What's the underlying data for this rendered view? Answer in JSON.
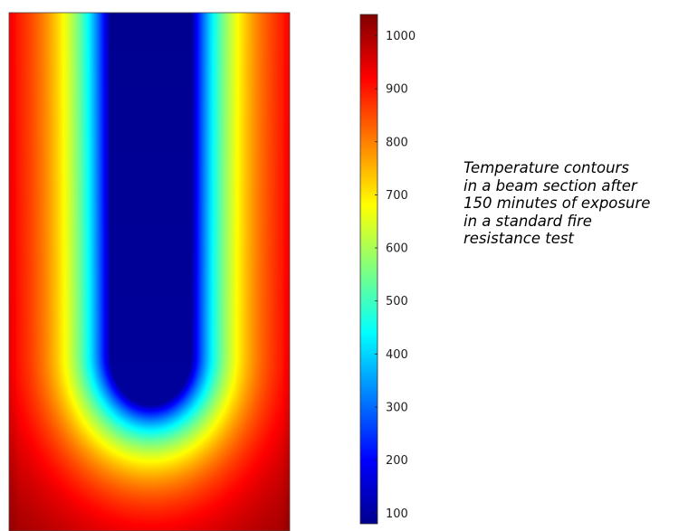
{
  "chart_data": {
    "type": "heatmap",
    "title": "",
    "xlabel": "",
    "ylabel": "",
    "colorbar": {
      "ticks": [
        1000,
        900,
        800,
        700,
        600,
        500,
        400,
        300,
        200,
        100
      ],
      "range": [
        80,
        1040
      ],
      "colormap": "jet",
      "unit": ""
    },
    "field": {
      "description_shown": "temperature contours in beam section",
      "max_value": 1040,
      "min_value": 80
    }
  },
  "caption": {
    "lines": [
      "Temperature contours",
      "in a beam section after",
      "150 minutes of exposure",
      "in a standard fire",
      "resistance test"
    ]
  },
  "colors": {
    "cold": "#00008f",
    "hot": "#8b0000",
    "background": "#ffffff"
  }
}
